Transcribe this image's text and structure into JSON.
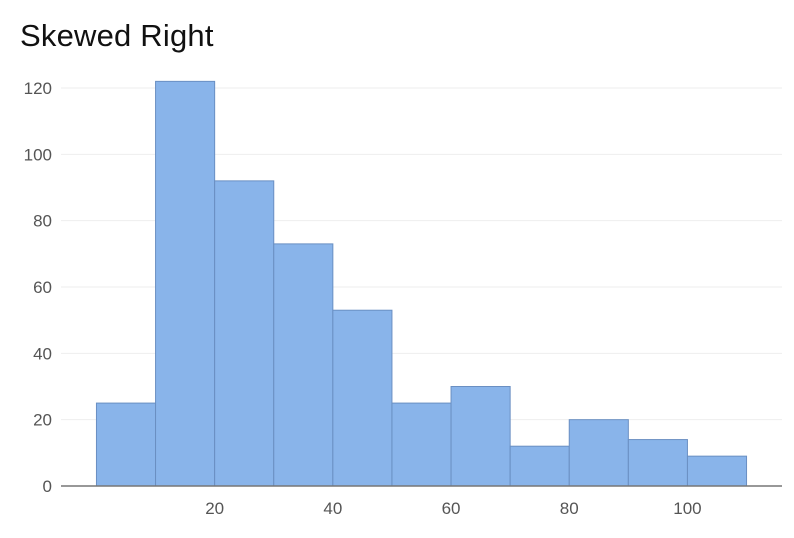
{
  "chart_data": {
    "type": "bar",
    "title": "Skewed Right",
    "bins": [
      {
        "x0": 0,
        "x1": 10,
        "count": 25
      },
      {
        "x0": 10,
        "x1": 20,
        "count": 122
      },
      {
        "x0": 20,
        "x1": 30,
        "count": 92
      },
      {
        "x0": 30,
        "x1": 40,
        "count": 73
      },
      {
        "x0": 40,
        "x1": 50,
        "count": 53
      },
      {
        "x0": 50,
        "x1": 60,
        "count": 25
      },
      {
        "x0": 60,
        "x1": 70,
        "count": 30
      },
      {
        "x0": 70,
        "x1": 80,
        "count": 12
      },
      {
        "x0": 80,
        "x1": 90,
        "count": 20
      },
      {
        "x0": 90,
        "x1": 100,
        "count": 14
      },
      {
        "x0": 100,
        "x1": 110,
        "count": 9
      }
    ],
    "xlim": [
      -6,
      116
    ],
    "ylim": [
      0,
      120
    ],
    "x_ticks": [
      "20",
      "40",
      "60",
      "80",
      "100"
    ],
    "y_ticks": [
      "0",
      "20",
      "40",
      "60",
      "80",
      "100",
      "120"
    ],
    "grid": true,
    "colors": {
      "bar_fill": "#89b4ea",
      "bar_stroke": "#6a8fc2",
      "grid": "#eeeeee",
      "axis": "#777777"
    }
  }
}
